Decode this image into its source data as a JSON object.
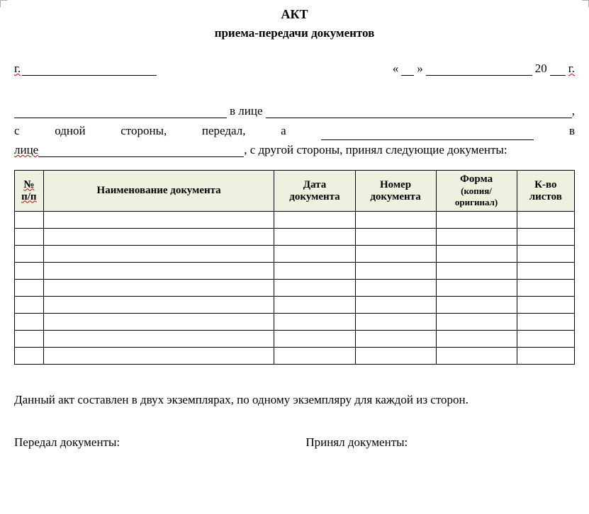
{
  "title": "АКТ",
  "subtitle": "приема-передачи документов",
  "city_prefix": "г.",
  "date_left_quote": "«",
  "date_right_quote": "»",
  "year_prefix": "20",
  "year_suffix": "г.",
  "preamble": {
    "v_litse1": "в лице",
    "line2_s": "с",
    "line2_odnoy": "одной",
    "line2_storony": "стороны,",
    "line2_peredal": "передал,",
    "line2_a": "а",
    "line2_v": "в",
    "line3_litse": "лице",
    "line3_rest": ", с другой стороны, принял следующие документы:"
  },
  "table": {
    "headers": {
      "num": "№ п/п",
      "name": "Наименование документа",
      "date": "Дата документа",
      "number": "Номер документа",
      "form_main": "Форма",
      "form_sub": "(копия/ оригинал)",
      "sheets": "К-во листов"
    },
    "row_count": 9,
    "header_bg": "#eef0e0",
    "border_color": "#000000"
  },
  "footer_note": "Данный акт составлен в двух экземплярах, по одному экземпляру для каждой из сторон.",
  "sign": {
    "left": "Передал документы:",
    "right": "Принял документы:"
  },
  "colors": {
    "background": "#ffffff",
    "text": "#000000",
    "wavy": "#d00000"
  }
}
